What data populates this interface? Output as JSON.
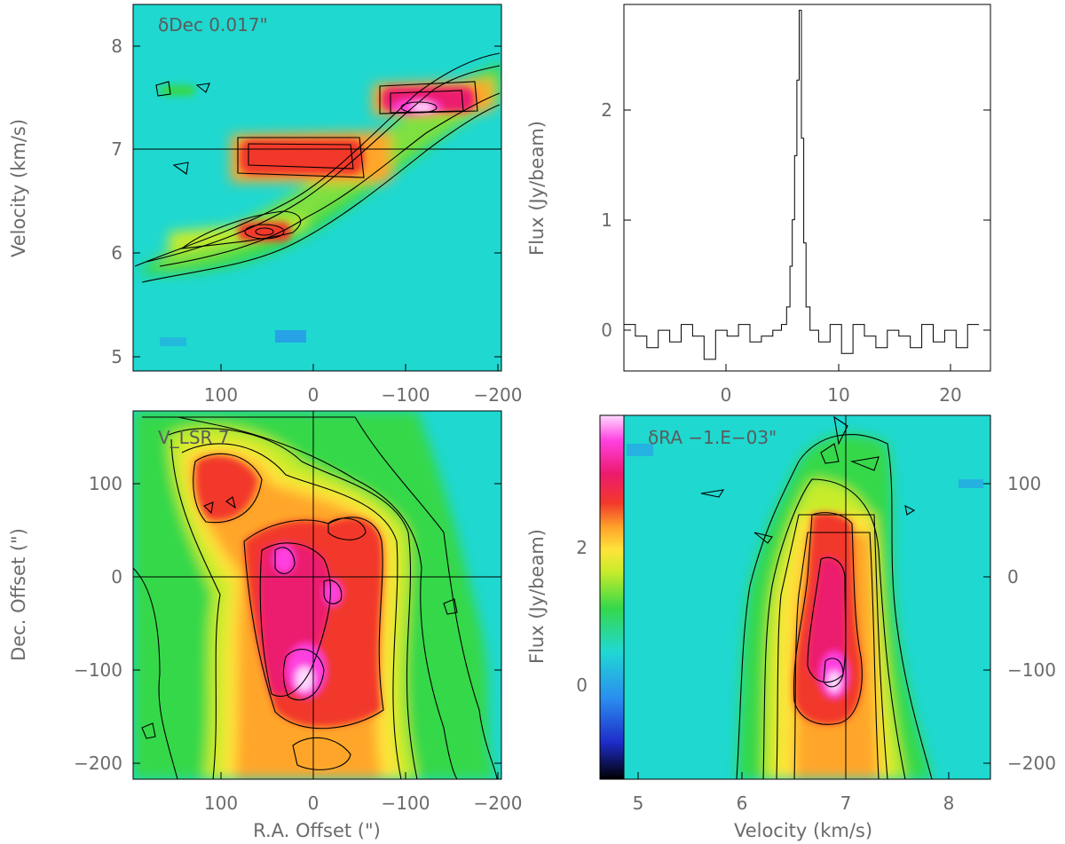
{
  "chart_data": [
    {
      "type": "heatmap",
      "panel": "position-velocity (R.A. cut)",
      "annotation": "δDec 0.017\"",
      "ylabel": "Velocity (km/s)",
      "xticks": [
        "100",
        "0",
        "−100",
        "−200"
      ],
      "yticks": [
        "5",
        "6",
        "7",
        "8"
      ],
      "xlim": [
        200,
        -200
      ],
      "ylim": [
        4.85,
        8.4
      ],
      "crosshair": {
        "velocity": 7.0
      },
      "features": [
        {
          "ra": -110,
          "velocity": 7.42,
          "peak": "magenta"
        },
        {
          "ra": 0,
          "velocity": 6.98,
          "peak": "red"
        },
        {
          "ra": 60,
          "velocity": 6.2,
          "peak": "red"
        }
      ]
    },
    {
      "type": "line",
      "panel": "spectrum",
      "ylabel": "Flux (Jy/beam)",
      "xticks": [
        "0",
        "10",
        "20"
      ],
      "yticks": [
        "0",
        "1",
        "2"
      ],
      "xlim": [
        -8.5,
        23.5
      ],
      "ylim": [
        -0.3,
        2.85
      ],
      "series": [
        {
          "x": [
            -8,
            -7,
            -6,
            -5,
            -4,
            -3,
            -2,
            -1,
            0,
            1,
            2,
            3,
            4,
            5,
            5.5,
            5.9,
            6.1,
            6.3,
            6.5,
            6.7,
            6.9,
            7.1,
            7.3,
            7.5,
            8,
            9,
            10,
            11,
            12,
            13,
            14,
            15,
            16,
            17,
            18,
            19,
            20,
            21,
            22
          ],
          "y": [
            0.1,
            0.0,
            -0.1,
            0.05,
            -0.05,
            0.1,
            0.0,
            -0.2,
            0.05,
            0.0,
            0.1,
            -0.05,
            0.0,
            0.05,
            0.1,
            0.25,
            0.6,
            1.0,
            1.55,
            2.2,
            2.8,
            1.7,
            0.8,
            0.25,
            0.05,
            -0.05,
            0.1,
            -0.15,
            0.1,
            0.0,
            -0.1,
            0.05,
            0.0,
            -0.1,
            0.1,
            -0.05,
            0.05,
            -0.1,
            0.1
          ]
        }
      ]
    },
    {
      "type": "heatmap",
      "panel": "integrated map",
      "annotation": "V_LSR 7",
      "xlabel": "R.A. Offset (\")",
      "ylabel": "Dec. Offset (\")",
      "xticks": [
        "100",
        "0",
        "−100",
        "−200"
      ],
      "yticks": [
        "100",
        "0",
        "−100",
        "−200"
      ],
      "xlim": [
        200,
        -200
      ],
      "ylim": [
        -220,
        175
      ],
      "features": [
        {
          "ra": 10,
          "dec": -95,
          "peak": "magenta"
        },
        {
          "ra": -20,
          "dec": 10,
          "peak": "magenta"
        },
        {
          "ra": 75,
          "dec": 80,
          "peak": "red"
        }
      ]
    },
    {
      "type": "heatmap",
      "panel": "position-velocity (Dec. cut)",
      "annotation": "δRA −1.E−03\"",
      "xlabel": "Velocity (km/s)",
      "ylabel": "Flux (Jy/beam)",
      "xticks": [
        "5",
        "6",
        "7",
        "8"
      ],
      "yticks_left": [
        "0",
        "2"
      ],
      "yticks_right": [
        "100",
        "0",
        "−100",
        "−200"
      ],
      "xlim": [
        4.85,
        8.4
      ],
      "ylim": [
        -220,
        175
      ],
      "colorbar_range": [
        -1.3,
        3.8
      ],
      "crosshair": {
        "velocity": 7.0
      },
      "features": [
        {
          "velocity": 6.9,
          "dec": -100,
          "peak": "magenta"
        },
        {
          "velocity": 6.95,
          "dec": 50,
          "peak": "red"
        }
      ]
    }
  ],
  "colors": {
    "background": "#1fd8d0",
    "colorbar": [
      "#000000",
      "#1e2bc8",
      "#2b8cf0",
      "#20d8d4",
      "#35d84a",
      "#c8ec2a",
      "#ffe43a",
      "#ffa62a",
      "#f2382c",
      "#ec1a6e",
      "#ff40e0",
      "#ffd9ff"
    ]
  }
}
